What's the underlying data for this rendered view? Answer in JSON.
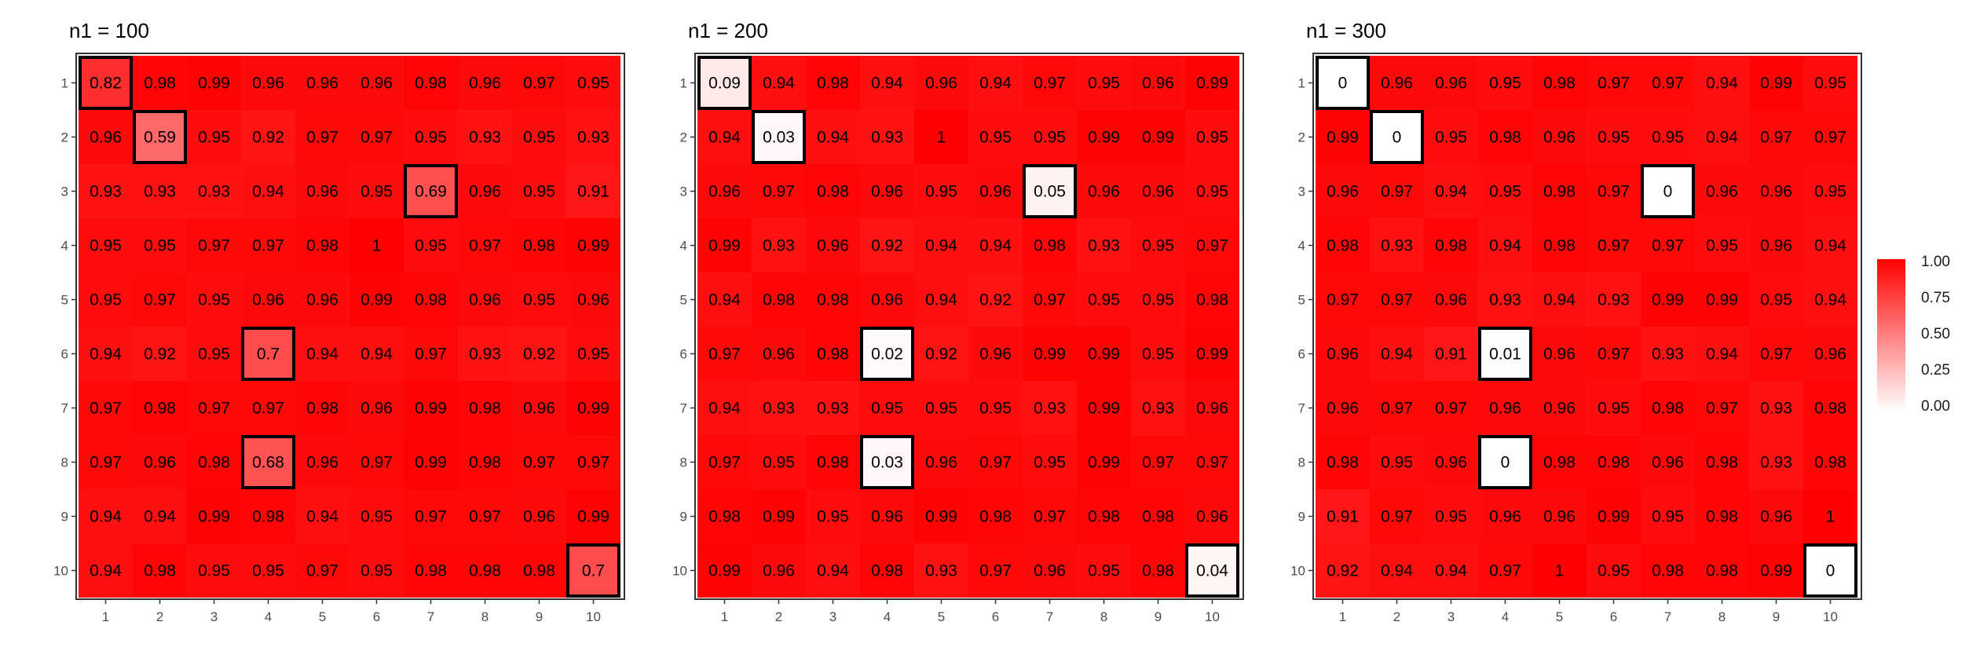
{
  "colors": {
    "high": "#ff0000",
    "low": "#ffffff",
    "highlight_border": "#000000"
  },
  "legend": {
    "ticks": [
      "1.00",
      "0.75",
      "0.50",
      "0.25",
      "0.00"
    ]
  },
  "chart_data": [
    {
      "type": "heatmap",
      "title": "n1 = 100",
      "x": [
        "1",
        "2",
        "3",
        "4",
        "5",
        "6",
        "7",
        "8",
        "9",
        "10"
      ],
      "y": [
        "1",
        "2",
        "3",
        "4",
        "5",
        "6",
        "7",
        "8",
        "9",
        "10"
      ],
      "values": [
        [
          "0.82",
          "0.98",
          "0.99",
          "0.96",
          "0.96",
          "0.96",
          "0.98",
          "0.96",
          "0.97",
          "0.95"
        ],
        [
          "0.96",
          "0.59",
          "0.95",
          "0.92",
          "0.97",
          "0.97",
          "0.95",
          "0.93",
          "0.95",
          "0.93"
        ],
        [
          "0.93",
          "0.93",
          "0.93",
          "0.94",
          "0.96",
          "0.95",
          "0.69",
          "0.96",
          "0.95",
          "0.91"
        ],
        [
          "0.95",
          "0.95",
          "0.97",
          "0.97",
          "0.98",
          "1",
          "0.95",
          "0.97",
          "0.98",
          "0.99"
        ],
        [
          "0.95",
          "0.97",
          "0.95",
          "0.96",
          "0.96",
          "0.99",
          "0.98",
          "0.96",
          "0.95",
          "0.96"
        ],
        [
          "0.94",
          "0.92",
          "0.95",
          "0.7",
          "0.94",
          "0.94",
          "0.97",
          "0.93",
          "0.92",
          "0.95"
        ],
        [
          "0.97",
          "0.98",
          "0.97",
          "0.97",
          "0.98",
          "0.96",
          "0.99",
          "0.98",
          "0.96",
          "0.99"
        ],
        [
          "0.97",
          "0.96",
          "0.98",
          "0.68",
          "0.96",
          "0.97",
          "0.99",
          "0.98",
          "0.97",
          "0.97"
        ],
        [
          "0.94",
          "0.94",
          "0.99",
          "0.98",
          "0.94",
          "0.95",
          "0.97",
          "0.97",
          "0.96",
          "0.99"
        ],
        [
          "0.94",
          "0.98",
          "0.95",
          "0.95",
          "0.97",
          "0.95",
          "0.98",
          "0.98",
          "0.98",
          "0.7"
        ]
      ],
      "highlighted_cells": [
        [
          1,
          1
        ],
        [
          2,
          2
        ],
        [
          3,
          7
        ],
        [
          6,
          4
        ],
        [
          8,
          4
        ],
        [
          10,
          10
        ]
      ]
    },
    {
      "type": "heatmap",
      "title": "n1 = 200",
      "x": [
        "1",
        "2",
        "3",
        "4",
        "5",
        "6",
        "7",
        "8",
        "9",
        "10"
      ],
      "y": [
        "1",
        "2",
        "3",
        "4",
        "5",
        "6",
        "7",
        "8",
        "9",
        "10"
      ],
      "values": [
        [
          "0.09",
          "0.94",
          "0.98",
          "0.94",
          "0.96",
          "0.94",
          "0.97",
          "0.95",
          "0.96",
          "0.99"
        ],
        [
          "0.94",
          "0.03",
          "0.94",
          "0.93",
          "1",
          "0.95",
          "0.95",
          "0.99",
          "0.99",
          "0.95"
        ],
        [
          "0.96",
          "0.97",
          "0.98",
          "0.96",
          "0.95",
          "0.96",
          "0.05",
          "0.96",
          "0.96",
          "0.95"
        ],
        [
          "0.99",
          "0.93",
          "0.96",
          "0.92",
          "0.94",
          "0.94",
          "0.98",
          "0.93",
          "0.95",
          "0.97"
        ],
        [
          "0.94",
          "0.98",
          "0.98",
          "0.96",
          "0.94",
          "0.92",
          "0.97",
          "0.95",
          "0.95",
          "0.98"
        ],
        [
          "0.97",
          "0.96",
          "0.98",
          "0.02",
          "0.92",
          "0.96",
          "0.99",
          "0.99",
          "0.95",
          "0.99"
        ],
        [
          "0.94",
          "0.93",
          "0.93",
          "0.95",
          "0.95",
          "0.95",
          "0.93",
          "0.99",
          "0.93",
          "0.96"
        ],
        [
          "0.97",
          "0.95",
          "0.98",
          "0.03",
          "0.96",
          "0.97",
          "0.95",
          "0.99",
          "0.97",
          "0.97"
        ],
        [
          "0.98",
          "0.99",
          "0.95",
          "0.96",
          "0.99",
          "0.98",
          "0.97",
          "0.98",
          "0.98",
          "0.96"
        ],
        [
          "0.99",
          "0.96",
          "0.94",
          "0.98",
          "0.93",
          "0.97",
          "0.96",
          "0.95",
          "0.98",
          "0.04"
        ]
      ],
      "highlighted_cells": [
        [
          1,
          1
        ],
        [
          2,
          2
        ],
        [
          3,
          7
        ],
        [
          6,
          4
        ],
        [
          8,
          4
        ],
        [
          10,
          10
        ]
      ]
    },
    {
      "type": "heatmap",
      "title": "n1 = 300",
      "x": [
        "1",
        "2",
        "3",
        "4",
        "5",
        "6",
        "7",
        "8",
        "9",
        "10"
      ],
      "y": [
        "1",
        "2",
        "3",
        "4",
        "5",
        "6",
        "7",
        "8",
        "9",
        "10"
      ],
      "values": [
        [
          "0",
          "0.96",
          "0.96",
          "0.95",
          "0.98",
          "0.97",
          "0.97",
          "0.94",
          "0.99",
          "0.95"
        ],
        [
          "0.99",
          "0",
          "0.95",
          "0.98",
          "0.96",
          "0.95",
          "0.95",
          "0.94",
          "0.97",
          "0.97"
        ],
        [
          "0.96",
          "0.97",
          "0.94",
          "0.95",
          "0.98",
          "0.97",
          "0",
          "0.96",
          "0.96",
          "0.95"
        ],
        [
          "0.98",
          "0.93",
          "0.98",
          "0.94",
          "0.98",
          "0.97",
          "0.97",
          "0.95",
          "0.96",
          "0.94"
        ],
        [
          "0.97",
          "0.97",
          "0.96",
          "0.93",
          "0.94",
          "0.93",
          "0.99",
          "0.99",
          "0.95",
          "0.94"
        ],
        [
          "0.96",
          "0.94",
          "0.91",
          "0.01",
          "0.96",
          "0.97",
          "0.93",
          "0.94",
          "0.97",
          "0.96"
        ],
        [
          "0.96",
          "0.97",
          "0.97",
          "0.96",
          "0.96",
          "0.95",
          "0.98",
          "0.97",
          "0.93",
          "0.98"
        ],
        [
          "0.98",
          "0.95",
          "0.96",
          "0",
          "0.98",
          "0.98",
          "0.96",
          "0.98",
          "0.93",
          "0.98"
        ],
        [
          "0.91",
          "0.97",
          "0.95",
          "0.96",
          "0.96",
          "0.99",
          "0.95",
          "0.98",
          "0.96",
          "1"
        ],
        [
          "0.92",
          "0.94",
          "0.94",
          "0.97",
          "1",
          "0.95",
          "0.98",
          "0.98",
          "0.99",
          "0"
        ]
      ],
      "highlighted_cells": [
        [
          1,
          1
        ],
        [
          2,
          2
        ],
        [
          3,
          7
        ],
        [
          6,
          4
        ],
        [
          8,
          4
        ],
        [
          10,
          10
        ]
      ]
    }
  ]
}
